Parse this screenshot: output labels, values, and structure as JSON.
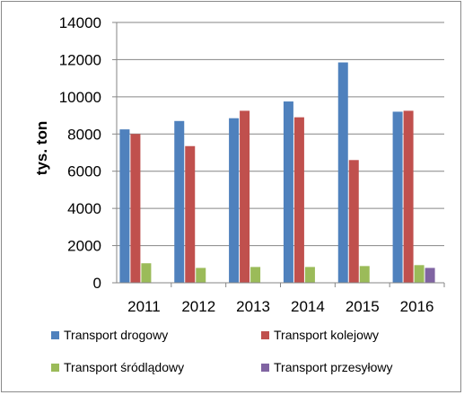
{
  "chart_data": {
    "type": "bar",
    "ylabel": "tys. ton",
    "xlabel": "",
    "title": "",
    "ylim": [
      0,
      14000
    ],
    "yticks": [
      0,
      2000,
      4000,
      6000,
      8000,
      10000,
      12000,
      14000
    ],
    "grid": true,
    "legend_position": "bottom",
    "categories": [
      "2011",
      "2012",
      "2013",
      "2014",
      "2015",
      "2016"
    ],
    "series": [
      {
        "name": "Transport drogowy",
        "color": "#4F81BD",
        "values": [
          8250,
          8700,
          8850,
          9750,
          11850,
          9200
        ]
      },
      {
        "name": "Transport kolejowy",
        "color": "#C0504D",
        "values": [
          8000,
          7350,
          9250,
          8900,
          6600,
          9250
        ]
      },
      {
        "name": "Transport śródlądowy",
        "color": "#9BBB59",
        "values": [
          1050,
          800,
          850,
          850,
          900,
          950
        ]
      },
      {
        "name": "Transport przesyłowy",
        "color": "#8064A2",
        "values": [
          null,
          null,
          null,
          null,
          null,
          800
        ]
      }
    ]
  }
}
